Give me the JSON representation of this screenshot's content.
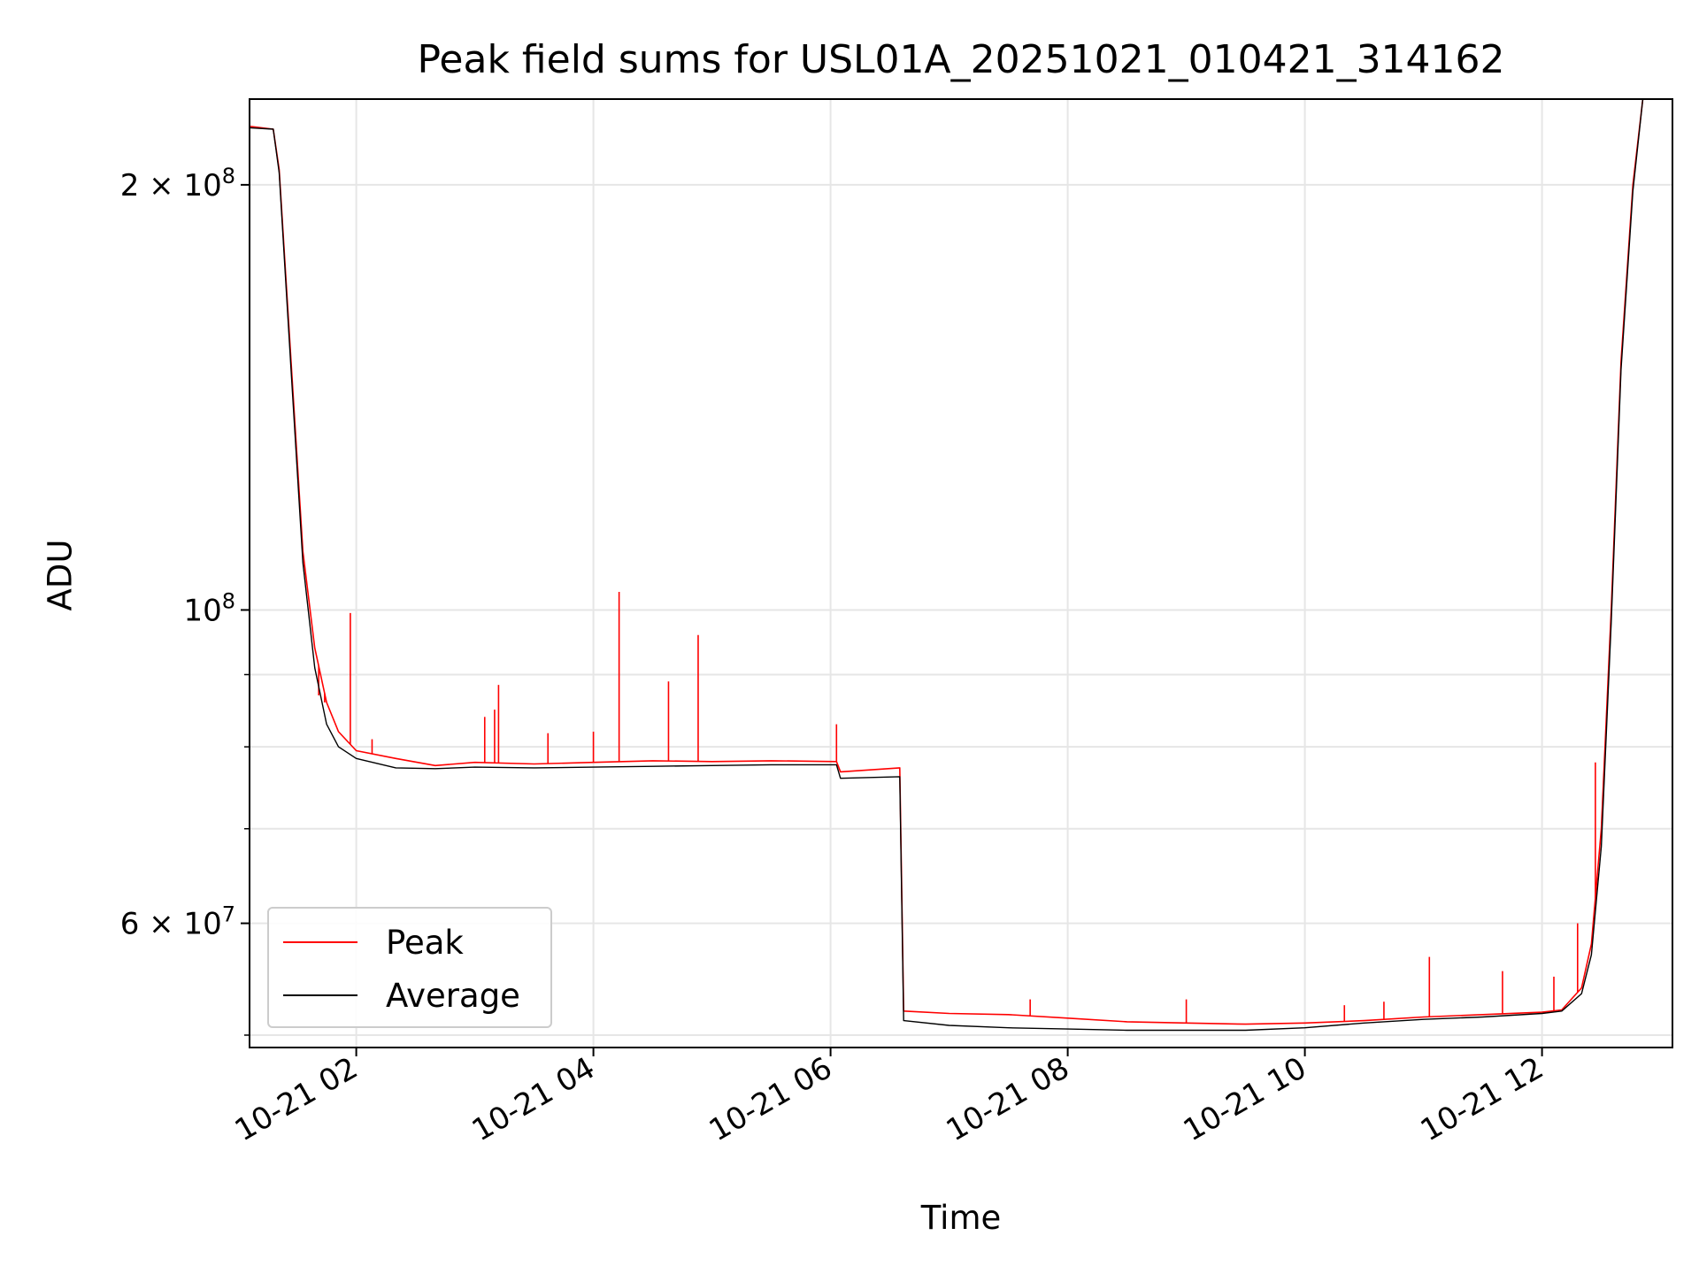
{
  "chart_data": {
    "type": "line",
    "title": "Peak field sums for USL01A_20251021_010421_314162",
    "xlabel": "Time",
    "ylabel": "ADU",
    "y_scale": "log",
    "ylim": [
      49000000,
      230000000
    ],
    "xlim": [
      "10-21 01:06",
      "10-21 13:06"
    ],
    "x_ticks": [
      "10-21 02",
      "10-21 04",
      "10-21 06",
      "10-21 08",
      "10-21 10",
      "10-21 12"
    ],
    "y_ticks": [
      {
        "value": 60000000,
        "label_base": "6 × 10",
        "label_exp": "7"
      },
      {
        "value": 100000000,
        "label_base": "10",
        "label_exp": "8"
      },
      {
        "value": 200000000,
        "label_base": "2 × 10",
        "label_exp": "8"
      }
    ],
    "grid": true,
    "legend_position": "lower-left",
    "series": [
      {
        "name": "Peak",
        "color": "#ff0000",
        "points": [
          [
            "10-21 01:06",
            220000000
          ],
          [
            "10-21 01:18",
            219000000
          ],
          [
            "10-21 01:21",
            205000000
          ],
          [
            "10-21 01:27",
            150000000
          ],
          [
            "10-21 01:33",
            110000000
          ],
          [
            "10-21 01:39",
            94000000
          ],
          [
            "10-21 01:45",
            86000000
          ],
          [
            "10-21 01:51",
            82000000
          ],
          [
            "10-21 02:00",
            79500000
          ],
          [
            "10-21 02:20",
            78500000
          ],
          [
            "10-21 02:40",
            77600000
          ],
          [
            "10-21 03:00",
            78000000
          ],
          [
            "10-21 03:30",
            77800000
          ],
          [
            "10-21 04:00",
            78000000
          ],
          [
            "10-21 04:30",
            78200000
          ],
          [
            "10-21 05:00",
            78100000
          ],
          [
            "10-21 05:30",
            78200000
          ],
          [
            "10-21 06:03",
            78100000
          ],
          [
            "10-21 06:05",
            76800000
          ],
          [
            "10-21 06:35",
            77300000
          ],
          [
            "10-21 06:37",
            52000000
          ],
          [
            "10-21 07:00",
            51800000
          ],
          [
            "10-21 07:30",
            51700000
          ],
          [
            "10-21 08:00",
            51400000
          ],
          [
            "10-21 08:30",
            51100000
          ],
          [
            "10-21 09:00",
            51000000
          ],
          [
            "10-21 09:30",
            50900000
          ],
          [
            "10-21 10:00",
            51000000
          ],
          [
            "10-21 10:30",
            51200000
          ],
          [
            "10-21 11:00",
            51500000
          ],
          [
            "10-21 11:30",
            51700000
          ],
          [
            "10-21 12:00",
            51900000
          ],
          [
            "10-21 12:10",
            52100000
          ],
          [
            "10-21 12:20",
            54000000
          ],
          [
            "10-21 12:25",
            58000000
          ],
          [
            "10-21 12:30",
            70000000
          ],
          [
            "10-21 12:35",
            100000000
          ],
          [
            "10-21 12:40",
            150000000
          ],
          [
            "10-21 12:46",
            200000000
          ],
          [
            "10-21 12:51",
            230000000
          ],
          [
            "10-21 13:06",
            230000000
          ]
        ],
        "spikes": [
          [
            "10-21 01:41",
            87000000
          ],
          [
            "10-21 01:44",
            86000000
          ],
          [
            "10-21 01:57",
            99500000
          ],
          [
            "10-21 02:08",
            81000000
          ],
          [
            "10-21 03:05",
            84000000
          ],
          [
            "10-21 03:10",
            85000000
          ],
          [
            "10-21 03:12",
            88500000
          ],
          [
            "10-21 03:37",
            81800000
          ],
          [
            "10-21 04:00",
            82000000
          ],
          [
            "10-21 04:13",
            103000000
          ],
          [
            "10-21 04:38",
            89000000
          ],
          [
            "10-21 04:53",
            96000000
          ],
          [
            "10-21 06:03",
            83000000
          ],
          [
            "10-21 07:41",
            53000000
          ],
          [
            "10-21 09:00",
            53000000
          ],
          [
            "10-21 10:20",
            52500000
          ],
          [
            "10-21 10:40",
            52800000
          ],
          [
            "10-21 11:03",
            56800000
          ],
          [
            "10-21 11:40",
            55500000
          ],
          [
            "10-21 12:06",
            55000000
          ],
          [
            "10-21 12:18",
            60000000
          ],
          [
            "10-21 12:27",
            78000000
          ]
        ]
      },
      {
        "name": "Average",
        "color": "#000000",
        "points": [
          [
            "10-21 01:06",
            219500000
          ],
          [
            "10-21 01:18",
            219000000
          ],
          [
            "10-21 01:21",
            204000000
          ],
          [
            "10-21 01:27",
            148000000
          ],
          [
            "10-21 01:33",
            108000000
          ],
          [
            "10-21 01:39",
            91000000
          ],
          [
            "10-21 01:45",
            83000000
          ],
          [
            "10-21 01:51",
            80000000
          ],
          [
            "10-21 02:00",
            78500000
          ],
          [
            "10-21 02:20",
            77300000
          ],
          [
            "10-21 02:40",
            77200000
          ],
          [
            "10-21 03:00",
            77400000
          ],
          [
            "10-21 03:30",
            77300000
          ],
          [
            "10-21 04:00",
            77400000
          ],
          [
            "10-21 04:30",
            77500000
          ],
          [
            "10-21 05:00",
            77600000
          ],
          [
            "10-21 05:30",
            77700000
          ],
          [
            "10-21 06:03",
            77700000
          ],
          [
            "10-21 06:05",
            76000000
          ],
          [
            "10-21 06:35",
            76200000
          ],
          [
            "10-21 06:37",
            51200000
          ],
          [
            "10-21 07:00",
            50800000
          ],
          [
            "10-21 07:30",
            50600000
          ],
          [
            "10-21 08:00",
            50500000
          ],
          [
            "10-21 08:30",
            50400000
          ],
          [
            "10-21 09:00",
            50400000
          ],
          [
            "10-21 09:30",
            50400000
          ],
          [
            "10-21 10:00",
            50600000
          ],
          [
            "10-21 10:30",
            51000000
          ],
          [
            "10-21 11:00",
            51300000
          ],
          [
            "10-21 11:30",
            51500000
          ],
          [
            "10-21 12:00",
            51800000
          ],
          [
            "10-21 12:10",
            52000000
          ],
          [
            "10-21 12:20",
            53500000
          ],
          [
            "10-21 12:25",
            57000000
          ],
          [
            "10-21 12:30",
            68000000
          ],
          [
            "10-21 12:35",
            98000000
          ],
          [
            "10-21 12:40",
            148000000
          ],
          [
            "10-21 12:46",
            198000000
          ],
          [
            "10-21 12:51",
            230000000
          ],
          [
            "10-21 13:06",
            230000000
          ]
        ]
      }
    ]
  }
}
